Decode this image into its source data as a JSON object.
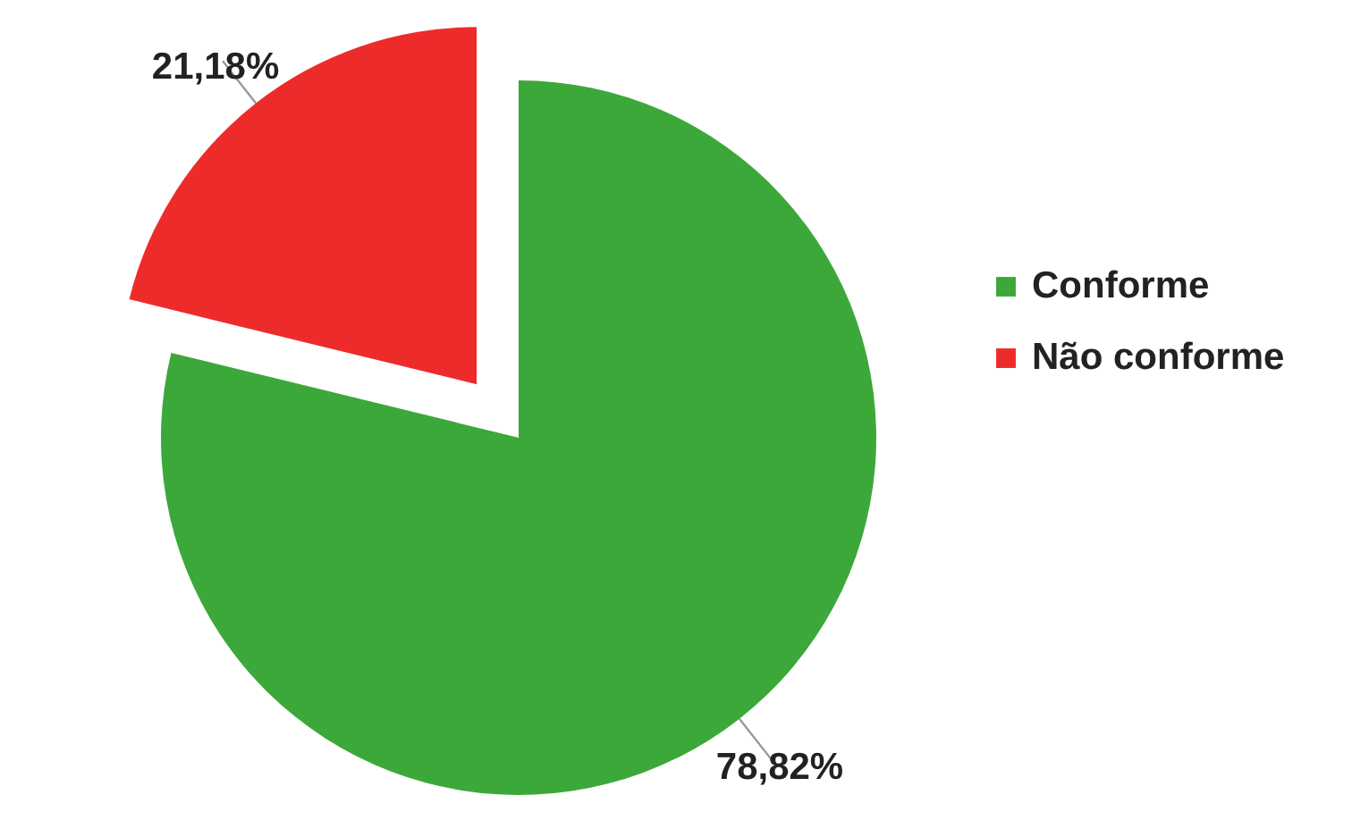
{
  "chart_data": {
    "type": "pie",
    "categories": [
      "Conforme",
      "Não conforme"
    ],
    "values": [
      78.82,
      21.18
    ],
    "value_labels": [
      "78,82%",
      "21,18%"
    ],
    "colors": [
      "#3ca83a",
      "#ee2b2b"
    ],
    "legend": "right"
  }
}
